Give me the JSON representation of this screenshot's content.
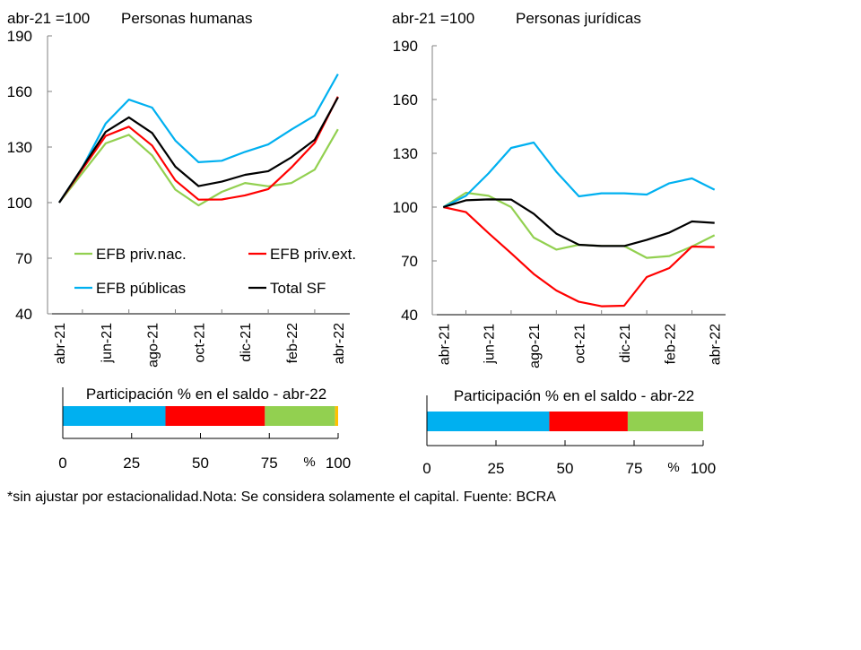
{
  "footnote": "*sin ajustar por estacionalidad.Nota: Se considera solamente el capital. Fuente: BCRA",
  "colors": {
    "EFB priv.nac.": "#92d050",
    "EFB priv.ext.": "#ff0000",
    "EFB públicas": "#00b0f0",
    "Total SF": "#000000",
    "otros": "#ffc000"
  },
  "chart_data": [
    {
      "type": "line",
      "index_label": "abr-21 =100",
      "title": "Personas humanas",
      "x": [
        "abr-21",
        "may-21",
        "jun-21",
        "jul-21",
        "ago-21",
        "sep-21",
        "oct-21",
        "nov-21",
        "dic-21",
        "ene-22",
        "feb-22",
        "mar-22",
        "abr-22"
      ],
      "x_tick_labels": [
        "abr-21",
        "jun-21",
        "ago-21",
        "oct-21",
        "dic-21",
        "feb-22",
        "abr-22"
      ],
      "ylim": [
        40,
        190
      ],
      "y_ticks": [
        40,
        70,
        100,
        130,
        160,
        190
      ],
      "legend": "inside-bottom",
      "grid": false,
      "series": [
        {
          "name": "EFB priv.nac.",
          "values": [
            100,
            116,
            132,
            136.6,
            125.5,
            107,
            98.5,
            105.8,
            110.6,
            108.8,
            110.6,
            117.8,
            139.6
          ]
        },
        {
          "name": "EFB priv.ext.",
          "values": [
            100,
            118,
            136,
            141,
            130.8,
            112,
            101.6,
            101.7,
            103.9,
            107.3,
            119,
            132.3,
            157.2
          ]
        },
        {
          "name": "EFB públicas",
          "values": [
            100,
            119,
            142.7,
            155.6,
            151.3,
            133.5,
            121.8,
            122.6,
            127.4,
            131.4,
            139.5,
            147,
            169.4
          ]
        },
        {
          "name": "Total SF",
          "values": [
            100,
            119,
            138.2,
            146,
            137.6,
            119.4,
            108.9,
            111.3,
            115,
            117,
            124.5,
            133.9,
            156.8
          ]
        }
      ]
    },
    {
      "type": "line",
      "index_label": "abr-21 =100",
      "title": "Personas jurídicas",
      "x": [
        "abr-21",
        "may-21",
        "jun-21",
        "jul-21",
        "ago-21",
        "sep-21",
        "oct-21",
        "nov-21",
        "dic-21",
        "ene-22",
        "feb-22",
        "mar-22",
        "abr-22"
      ],
      "x_tick_labels": [
        "abr-21",
        "jun-21",
        "ago-21",
        "oct-21",
        "dic-21",
        "feb-22",
        "abr-22"
      ],
      "ylim": [
        40,
        190
      ],
      "y_ticks": [
        40,
        70,
        100,
        130,
        160,
        190
      ],
      "grid": false,
      "series": [
        {
          "name": "EFB priv.nac.",
          "values": [
            100,
            108,
            106.3,
            100,
            83,
            76.3,
            79,
            78.3,
            78.3,
            71.7,
            72.7,
            78,
            84.3
          ]
        },
        {
          "name": "EFB priv.ext.",
          "values": [
            100,
            97.2,
            85.5,
            74.3,
            62.7,
            53.5,
            47.2,
            44.7,
            45,
            61,
            66,
            78,
            77.7
          ]
        },
        {
          "name": "EFB públicas",
          "values": [
            100,
            106.3,
            118.8,
            133,
            136,
            119.7,
            106,
            107.7,
            107.7,
            107,
            113.3,
            116,
            109.7
          ]
        },
        {
          "name": "Total SF",
          "values": [
            100,
            103.8,
            104.3,
            104.2,
            96.3,
            85.2,
            79,
            78.3,
            78.3,
            81.7,
            85.8,
            92,
            91.2
          ]
        }
      ]
    },
    {
      "type": "bar",
      "orientation": "horizontal-stacked",
      "title": "Participación % en el saldo - abr-22",
      "unit_label": "%",
      "xlim": [
        0,
        100
      ],
      "x_ticks": [
        0,
        25,
        50,
        75,
        100
      ],
      "segments": [
        {
          "category": "EFB públicas",
          "value": 37.3
        },
        {
          "category": "EFB priv.ext.",
          "value": 36.1
        },
        {
          "category": "EFB priv.nac.",
          "value": 25.5
        },
        {
          "category": "otros",
          "value": 1.1
        }
      ]
    },
    {
      "type": "bar",
      "orientation": "horizontal-stacked",
      "title": "Participación % en el saldo - abr-22",
      "unit_label": "%",
      "xlim": [
        0,
        100
      ],
      "x_ticks": [
        0,
        25,
        50,
        75,
        100
      ],
      "segments": [
        {
          "category": "EFB públicas",
          "value": 44.3
        },
        {
          "category": "EFB priv.ext.",
          "value": 28.4
        },
        {
          "category": "EFB priv.nac.",
          "value": 27.3
        }
      ]
    }
  ]
}
